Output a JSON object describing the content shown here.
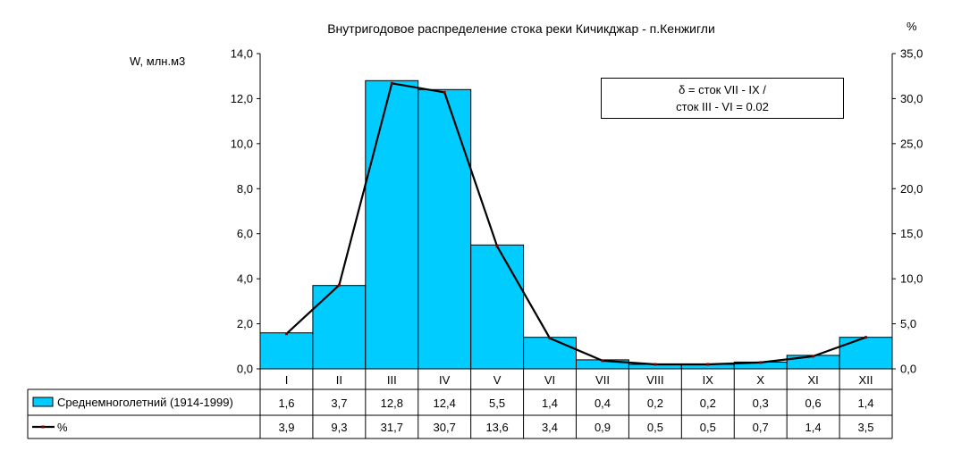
{
  "chart_data": {
    "type": "bar",
    "title": "Внутригодовое распределение стока реки Кичикджар - п.Кенжигли",
    "ylabel_left": "W, млн.м3",
    "ylabel_right": "%",
    "ylim_left": [
      0,
      14
    ],
    "ylim_right": [
      0,
      35
    ],
    "yticks_left": [
      "0,0",
      "2,0",
      "4,0",
      "6,0",
      "8,0",
      "10,0",
      "12,0",
      "14,0"
    ],
    "yticks_right": [
      "0,0",
      "5,0",
      "10,0",
      "15,0",
      "20,0",
      "25,0",
      "30,0",
      "35,0"
    ],
    "categories": [
      "I",
      "II",
      "III",
      "IV",
      "V",
      "VI",
      "VII",
      "VIII",
      "IX",
      "X",
      "XI",
      "XII"
    ],
    "series": [
      {
        "name": "Среднемноголетний (1914-1999)",
        "type": "bar",
        "axis": "left",
        "values": [
          1.6,
          3.7,
          12.8,
          12.4,
          5.5,
          1.4,
          0.4,
          0.2,
          0.2,
          0.3,
          0.6,
          1.4
        ],
        "labels": [
          "1,6",
          "3,7",
          "12,8",
          "12,4",
          "5,5",
          "1,4",
          "0,4",
          "0,2",
          "0,2",
          "0,3",
          "0,6",
          "1,4"
        ],
        "color": "#00CCFF"
      },
      {
        "name": "%",
        "type": "line",
        "axis": "right",
        "values": [
          3.9,
          9.3,
          31.7,
          30.7,
          13.6,
          3.4,
          0.9,
          0.5,
          0.5,
          0.7,
          1.4,
          3.5
        ],
        "labels": [
          "3,9",
          "9,3",
          "31,7",
          "30,7",
          "13,6",
          "3,4",
          "0,9",
          "0,5",
          "0,5",
          "0,7",
          "1,4",
          "3,5"
        ],
        "color": "#000000",
        "marker_color": "#800000"
      }
    ],
    "annotation": [
      "δ = сток VII - IX /",
      "сток III - VI = 0.02"
    ],
    "grid": false,
    "legend": "data-table"
  }
}
